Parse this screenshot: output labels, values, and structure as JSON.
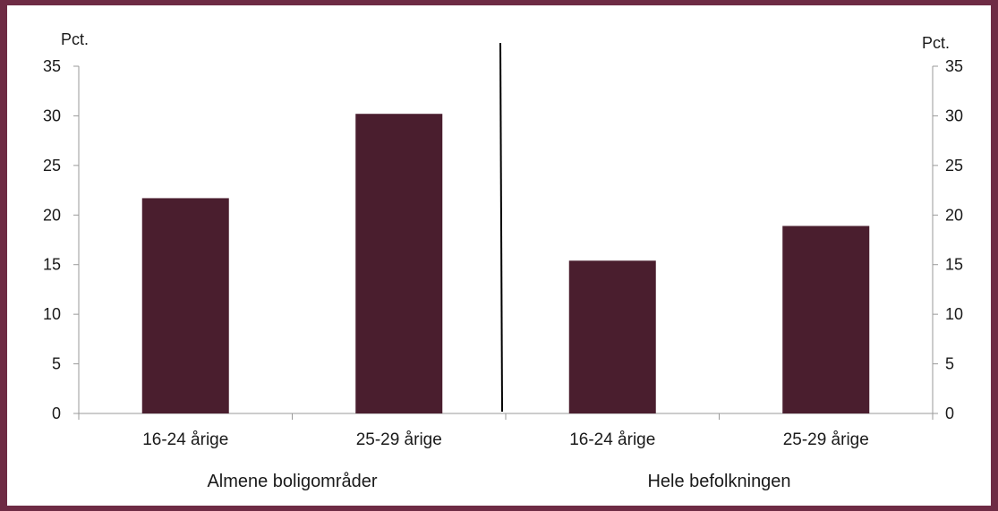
{
  "chart_data": {
    "type": "bar",
    "y_unit_left": "Pct.",
    "y_unit_right": "Pct.",
    "ylim": [
      0,
      35
    ],
    "yticks": [
      0,
      5,
      10,
      15,
      20,
      25,
      30,
      35
    ],
    "grid": false,
    "legend": "none",
    "bar_color": "#4a1e2e",
    "groups": [
      {
        "label": "Almene boligområder",
        "categories": [
          "16-24 årige",
          "25-29 årige"
        ],
        "values": [
          21.7,
          30.2
        ]
      },
      {
        "label": "Hele befolkningen",
        "categories": [
          "16-24 årige",
          "25-29 årige"
        ],
        "values": [
          15.4,
          18.9
        ]
      }
    ]
  }
}
